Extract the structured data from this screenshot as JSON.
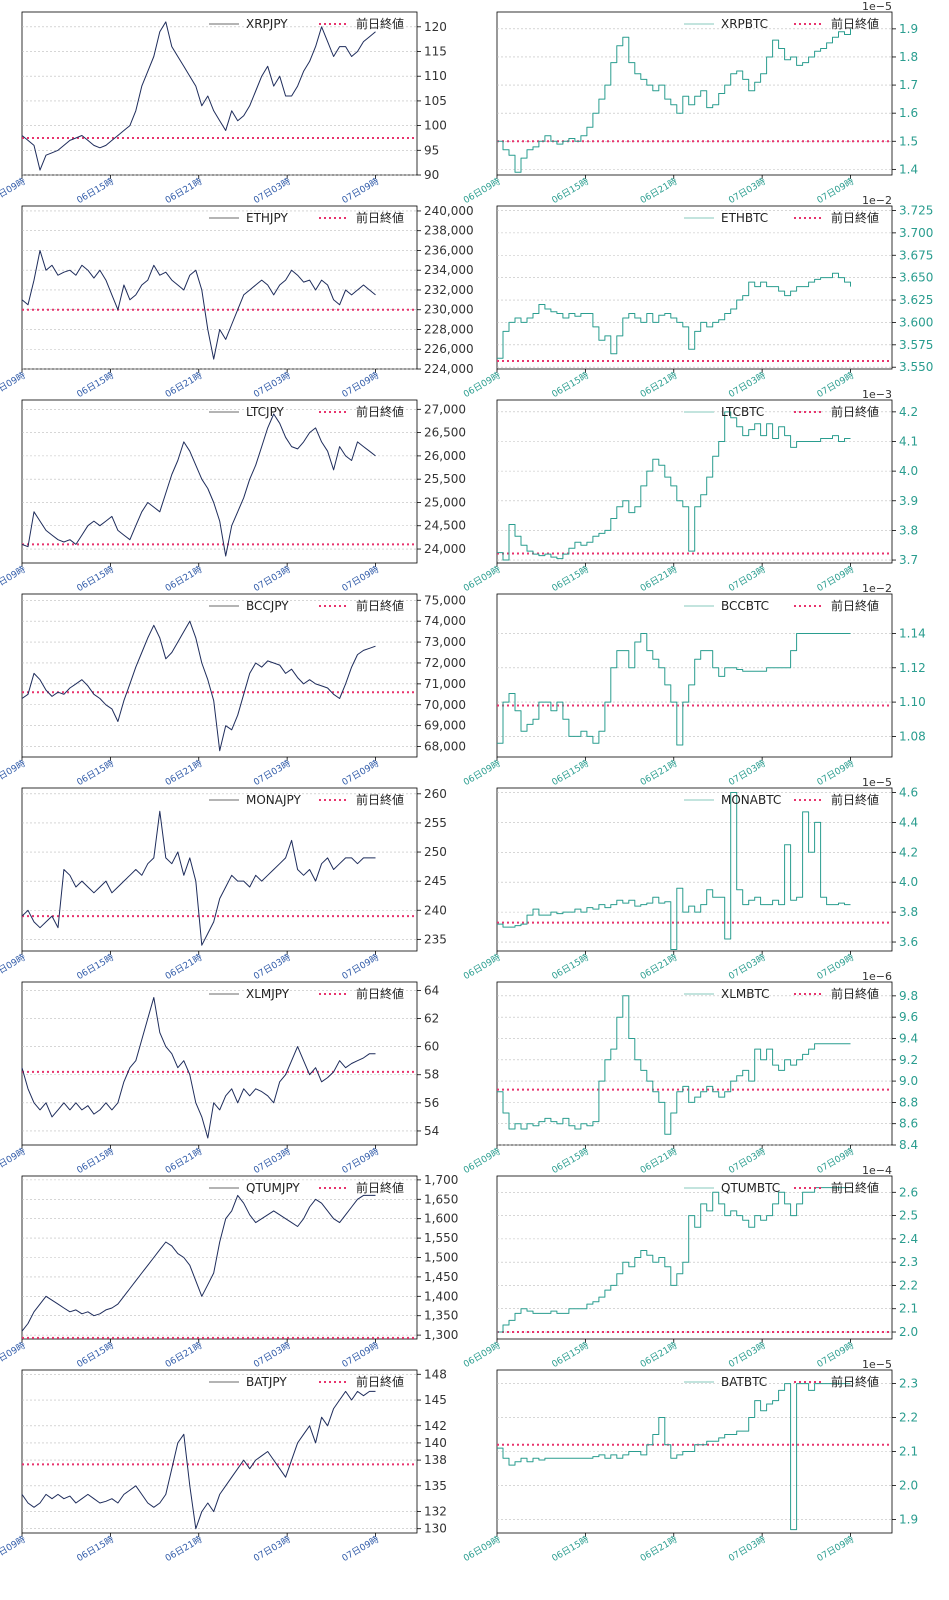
{
  "legend_ref_label": "前日終値",
  "x_tick_labels": [
    "06日09時",
    "06日15時",
    "06日21時",
    "07日03時",
    "07日09時"
  ],
  "colors": {
    "jpy": "#1f2d5c",
    "btc": "#2a9d8f",
    "ref": "#e8336d",
    "btc_tick": "#2a9d8f"
  },
  "chart_data": [
    {
      "type": "line",
      "pair": "XRPJPY",
      "yticks": [
        "90",
        "95",
        "100",
        "105",
        "110",
        "115",
        "120"
      ],
      "ylim": [
        90,
        123
      ],
      "exp": "",
      "ref": 97.5,
      "values": [
        98,
        97,
        96,
        91,
        94,
        94.5,
        95,
        96,
        97,
        97.5,
        98,
        97,
        96,
        95.5,
        96,
        97,
        98,
        99,
        100,
        103,
        108,
        111,
        114,
        119,
        121,
        116,
        114,
        112,
        110,
        108,
        104,
        106,
        103,
        101,
        99,
        103,
        101,
        102,
        104,
        107,
        110,
        112,
        108,
        110,
        106,
        106,
        108,
        111,
        113,
        116,
        120,
        117,
        114,
        116,
        116,
        114,
        115,
        117,
        118,
        119
      ]
    },
    {
      "type": "line",
      "pair": "XRPBTC",
      "yticks": [
        "1.4",
        "1.5",
        "1.6",
        "1.7",
        "1.8",
        "1.9"
      ],
      "ylim": [
        1.38,
        1.96
      ],
      "exp": "1e−5",
      "ref": 1.5,
      "values": [
        1.5,
        1.47,
        1.45,
        1.39,
        1.44,
        1.47,
        1.48,
        1.5,
        1.52,
        1.5,
        1.49,
        1.5,
        1.51,
        1.5,
        1.52,
        1.55,
        1.6,
        1.65,
        1.7,
        1.78,
        1.84,
        1.87,
        1.78,
        1.74,
        1.72,
        1.7,
        1.68,
        1.7,
        1.65,
        1.63,
        1.6,
        1.66,
        1.63,
        1.66,
        1.68,
        1.62,
        1.63,
        1.67,
        1.7,
        1.74,
        1.75,
        1.72,
        1.68,
        1.71,
        1.74,
        1.8,
        1.86,
        1.83,
        1.79,
        1.8,
        1.77,
        1.78,
        1.8,
        1.82,
        1.83,
        1.85,
        1.87,
        1.89,
        1.88,
        1.9
      ]
    },
    {
      "type": "line",
      "pair": "ETHJPY",
      "yticks": [
        "224,000",
        "226,000",
        "228,000",
        "230,000",
        "232,000",
        "234,000",
        "236,000",
        "238,000",
        "240,000"
      ],
      "ylim": [
        224000,
        240500
      ],
      "exp": "",
      "ref": 230000,
      "values": [
        231000,
        230500,
        233000,
        236000,
        234000,
        234500,
        233500,
        233800,
        234000,
        233500,
        234500,
        234000,
        233200,
        234000,
        233000,
        231500,
        230000,
        232500,
        231000,
        231500,
        232500,
        233000,
        234500,
        233500,
        233800,
        233000,
        232500,
        232000,
        233500,
        234000,
        232000,
        228000,
        225000,
        228000,
        227000,
        228500,
        230000,
        231500,
        232000,
        232500,
        233000,
        232500,
        231500,
        232500,
        233000,
        234000,
        233500,
        232800,
        233000,
        232000,
        233000,
        232500,
        231000,
        230500,
        232000,
        231500,
        232000,
        232500,
        232000,
        231500
      ]
    },
    {
      "type": "line",
      "pair": "ETHBTC",
      "yticks": [
        "3.550",
        "3.575",
        "3.600",
        "3.625",
        "3.650",
        "3.675",
        "3.700",
        "3.725"
      ],
      "ylim": [
        3.548,
        3.73
      ],
      "exp": "1e−2",
      "ref": 3.557,
      "values": [
        3.56,
        3.59,
        3.6,
        3.605,
        3.6,
        3.605,
        3.61,
        3.62,
        3.615,
        3.612,
        3.61,
        3.605,
        3.61,
        3.607,
        3.61,
        3.61,
        3.595,
        3.58,
        3.585,
        3.565,
        3.585,
        3.605,
        3.61,
        3.605,
        3.6,
        3.61,
        3.6,
        3.608,
        3.61,
        3.605,
        3.6,
        3.595,
        3.57,
        3.59,
        3.6,
        3.595,
        3.6,
        3.603,
        3.61,
        3.615,
        3.625,
        3.63,
        3.645,
        3.64,
        3.645,
        3.64,
        3.64,
        3.635,
        3.63,
        3.635,
        3.64,
        3.64,
        3.645,
        3.648,
        3.65,
        3.65,
        3.655,
        3.65,
        3.645,
        3.64
      ]
    },
    {
      "type": "line",
      "pair": "LTCJPY",
      "yticks": [
        "24,000",
        "24,500",
        "25,000",
        "25,500",
        "26,000",
        "26,500",
        "27,000"
      ],
      "ylim": [
        23700,
        27200
      ],
      "exp": "",
      "ref": 24100,
      "values": [
        24100,
        24050,
        24800,
        24600,
        24400,
        24300,
        24200,
        24150,
        24200,
        24100,
        24300,
        24500,
        24600,
        24500,
        24600,
        24700,
        24400,
        24300,
        24200,
        24500,
        24800,
        25000,
        24900,
        24800,
        25200,
        25600,
        25900,
        26300,
        26100,
        25800,
        25500,
        25300,
        25000,
        24600,
        23850,
        24500,
        24800,
        25100,
        25500,
        25800,
        26200,
        26600,
        26900,
        26700,
        26400,
        26200,
        26150,
        26300,
        26500,
        26600,
        26300,
        26100,
        25700,
        26200,
        26000,
        25900,
        26300,
        26200,
        26100,
        26000
      ]
    },
    {
      "type": "line",
      "pair": "LTCBTC",
      "yticks": [
        "3.7",
        "3.8",
        "3.9",
        "4.0",
        "4.1",
        "4.2"
      ],
      "ylim": [
        3.69,
        4.24
      ],
      "exp": "1e−3",
      "ref": 3.722,
      "values": [
        3.725,
        3.7,
        3.82,
        3.78,
        3.75,
        3.73,
        3.72,
        3.715,
        3.72,
        3.71,
        3.705,
        3.72,
        3.74,
        3.76,
        3.75,
        3.76,
        3.78,
        3.79,
        3.8,
        3.84,
        3.88,
        3.9,
        3.86,
        3.88,
        3.95,
        4.0,
        4.04,
        4.02,
        3.98,
        3.95,
        3.9,
        3.88,
        3.73,
        3.88,
        3.92,
        3.98,
        4.05,
        4.1,
        4.2,
        4.18,
        4.15,
        4.12,
        4.14,
        4.16,
        4.12,
        4.16,
        4.11,
        4.15,
        4.12,
        4.08,
        4.1,
        4.1,
        4.1,
        4.1,
        4.11,
        4.11,
        4.12,
        4.1,
        4.11,
        4.11
      ]
    },
    {
      "type": "line",
      "pair": "BCCJPY",
      "yticks": [
        "68,000",
        "69,000",
        "70,000",
        "71,000",
        "72,000",
        "73,000",
        "74,000",
        "75,000"
      ],
      "ylim": [
        67500,
        75300
      ],
      "exp": "",
      "ref": 70600,
      "values": [
        70300,
        70500,
        71500,
        71200,
        70700,
        70400,
        70600,
        70500,
        70800,
        71000,
        71200,
        70900,
        70500,
        70300,
        70000,
        69800,
        69200,
        70200,
        71000,
        71800,
        72500,
        73200,
        73800,
        73200,
        72200,
        72500,
        73000,
        73500,
        74000,
        73200,
        72000,
        71200,
        70200,
        67800,
        69000,
        68800,
        69500,
        70500,
        71500,
        72000,
        71800,
        72100,
        72000,
        71900,
        71500,
        71700,
        71300,
        71000,
        71200,
        71000,
        70900,
        70800,
        70500,
        70300,
        71000,
        71800,
        72400,
        72600,
        72700,
        72800
      ]
    },
    {
      "type": "line",
      "pair": "BCCBTC",
      "yticks": [
        "1.08",
        "1.10",
        "1.12",
        "1.14"
      ],
      "ylim": [
        1.068,
        1.163
      ],
      "exp": "1e−2",
      "ref": 1.098,
      "values": [
        1.076,
        1.1,
        1.105,
        1.095,
        1.083,
        1.087,
        1.09,
        1.1,
        1.1,
        1.095,
        1.1,
        1.09,
        1.08,
        1.08,
        1.083,
        1.08,
        1.076,
        1.083,
        1.1,
        1.12,
        1.13,
        1.13,
        1.12,
        1.135,
        1.14,
        1.13,
        1.125,
        1.12,
        1.11,
        1.1,
        1.075,
        1.1,
        1.11,
        1.125,
        1.13,
        1.13,
        1.12,
        1.115,
        1.12,
        1.12,
        1.119,
        1.118,
        1.118,
        1.118,
        1.118,
        1.12,
        1.12,
        1.12,
        1.12,
        1.13,
        1.14,
        1.14,
        1.14,
        1.14,
        1.14,
        1.14,
        1.14,
        1.14,
        1.14,
        1.14
      ]
    },
    {
      "type": "line",
      "pair": "MONAJPY",
      "yticks": [
        "235",
        "240",
        "245",
        "250",
        "255",
        "260"
      ],
      "ylim": [
        233,
        261
      ],
      "exp": "",
      "ref": 239,
      "values": [
        239,
        240,
        238,
        237,
        238,
        239,
        237,
        247,
        246,
        244,
        245,
        244,
        243,
        244,
        245,
        243,
        244,
        245,
        246,
        247,
        246,
        248,
        249,
        257,
        249,
        248,
        250,
        246,
        249,
        245,
        234,
        236,
        238,
        242,
        244,
        246,
        245,
        245,
        244,
        246,
        245,
        246,
        247,
        248,
        249,
        252,
        247,
        246,
        247,
        245,
        248,
        249,
        247,
        248,
        249,
        249,
        248,
        249,
        249,
        249
      ]
    },
    {
      "type": "line",
      "pair": "MONABTC",
      "yticks": [
        "3.6",
        "3.8",
        "4.0",
        "4.2",
        "4.4",
        "4.6"
      ],
      "ylim": [
        3.54,
        4.63
      ],
      "exp": "1e−5",
      "ref": 3.73,
      "values": [
        3.72,
        3.7,
        3.7,
        3.71,
        3.72,
        3.78,
        3.82,
        3.78,
        3.78,
        3.8,
        3.79,
        3.8,
        3.8,
        3.82,
        3.8,
        3.83,
        3.82,
        3.85,
        3.83,
        3.85,
        3.88,
        3.86,
        3.88,
        3.84,
        3.85,
        3.86,
        3.9,
        3.86,
        3.87,
        3.55,
        3.96,
        3.8,
        3.84,
        3.8,
        3.85,
        3.95,
        3.9,
        3.9,
        3.62,
        4.6,
        3.95,
        3.85,
        3.88,
        3.9,
        3.85,
        3.85,
        3.88,
        3.85,
        4.25,
        3.88,
        3.9,
        4.47,
        4.2,
        4.4,
        3.9,
        3.85,
        3.85,
        3.86,
        3.85,
        3.85
      ]
    },
    {
      "type": "line",
      "pair": "XLMJPY",
      "yticks": [
        "54",
        "56",
        "58",
        "60",
        "62",
        "64"
      ],
      "ylim": [
        53,
        64.6
      ],
      "exp": "",
      "ref": 58.2,
      "values": [
        58.5,
        57,
        56,
        55.5,
        56,
        55,
        55.5,
        56,
        55.5,
        56,
        55.5,
        55.8,
        55.2,
        55.5,
        56,
        55.5,
        56,
        57.5,
        58.5,
        59,
        60.5,
        62,
        63.5,
        61,
        60,
        59.5,
        58.5,
        59,
        58,
        56,
        55,
        53.5,
        56,
        55.5,
        56.5,
        57,
        56,
        57,
        56.5,
        57,
        56.8,
        56.5,
        56,
        57.5,
        58,
        59,
        60,
        59,
        58,
        58.5,
        57.5,
        57.8,
        58.2,
        59,
        58.5,
        58.8,
        59,
        59.2,
        59.5,
        59.5
      ]
    },
    {
      "type": "line",
      "pair": "XLMBTC",
      "yticks": [
        "8.4",
        "8.6",
        "8.8",
        "9.0",
        "9.2",
        "9.4",
        "9.6",
        "9.8"
      ],
      "ylim": [
        8.4,
        9.93
      ],
      "exp": "1e−6",
      "ref": 8.92,
      "values": [
        8.9,
        8.7,
        8.55,
        8.6,
        8.55,
        8.6,
        8.58,
        8.62,
        8.65,
        8.62,
        8.6,
        8.65,
        8.58,
        8.55,
        8.6,
        8.58,
        8.62,
        9.0,
        9.2,
        9.3,
        9.6,
        9.8,
        9.4,
        9.2,
        9.1,
        9.0,
        8.9,
        8.8,
        8.5,
        8.7,
        8.9,
        8.95,
        8.8,
        8.85,
        8.9,
        8.95,
        8.9,
        8.85,
        8.9,
        9.0,
        9.05,
        9.1,
        9.0,
        9.3,
        9.2,
        9.3,
        9.15,
        9.1,
        9.2,
        9.15,
        9.2,
        9.25,
        9.3,
        9.35,
        9.35,
        9.35,
        9.35,
        9.35,
        9.35,
        9.35
      ]
    },
    {
      "type": "line",
      "pair": "QTUMJPY",
      "yticks": [
        "1,300",
        "1,350",
        "1,400",
        "1,450",
        "1,500",
        "1,550",
        "1,600",
        "1,650",
        "1,700"
      ],
      "ylim": [
        1290,
        1710
      ],
      "exp": "",
      "ref": 1293,
      "values": [
        1310,
        1330,
        1360,
        1380,
        1400,
        1390,
        1380,
        1370,
        1360,
        1365,
        1355,
        1360,
        1350,
        1355,
        1365,
        1370,
        1380,
        1400,
        1420,
        1440,
        1460,
        1480,
        1500,
        1520,
        1540,
        1530,
        1510,
        1500,
        1480,
        1440,
        1400,
        1430,
        1460,
        1540,
        1600,
        1620,
        1660,
        1640,
        1610,
        1590,
        1600,
        1610,
        1620,
        1610,
        1600,
        1590,
        1580,
        1600,
        1630,
        1650,
        1640,
        1620,
        1600,
        1590,
        1610,
        1630,
        1650,
        1660,
        1660,
        1660
      ]
    },
    {
      "type": "line",
      "pair": "QTUMBTC",
      "yticks": [
        "2.0",
        "2.1",
        "2.2",
        "2.3",
        "2.4",
        "2.5",
        "2.6"
      ],
      "ylim": [
        1.97,
        2.67
      ],
      "exp": "1e−4",
      "ref": 2.0,
      "values": [
        2.0,
        2.03,
        2.05,
        2.08,
        2.1,
        2.09,
        2.08,
        2.08,
        2.08,
        2.09,
        2.08,
        2.08,
        2.1,
        2.1,
        2.1,
        2.12,
        2.13,
        2.15,
        2.18,
        2.2,
        2.25,
        2.3,
        2.28,
        2.32,
        2.35,
        2.33,
        2.3,
        2.32,
        2.28,
        2.2,
        2.25,
        2.3,
        2.5,
        2.45,
        2.55,
        2.52,
        2.6,
        2.55,
        2.5,
        2.52,
        2.5,
        2.48,
        2.45,
        2.5,
        2.48,
        2.5,
        2.55,
        2.6,
        2.55,
        2.5,
        2.55,
        2.6,
        2.6,
        2.62,
        2.62,
        2.62,
        2.62,
        2.62,
        2.62,
        2.62
      ]
    },
    {
      "type": "line",
      "pair": "BATJPY",
      "yticks": [
        "130",
        "132",
        "135",
        "138",
        "140",
        "142",
        "145",
        "148"
      ],
      "ylim": [
        129.5,
        148.5
      ],
      "exp": "",
      "ref": 137.5,
      "values": [
        134,
        133,
        132.5,
        133,
        134,
        133.5,
        134,
        133.5,
        133.8,
        133,
        133.5,
        134,
        133.5,
        133,
        133.2,
        133.5,
        133,
        134,
        134.5,
        135,
        134,
        133,
        132.5,
        133,
        134,
        137,
        140,
        141,
        135,
        130,
        132,
        133,
        132,
        134,
        135,
        136,
        137,
        138,
        137,
        138,
        138.5,
        139,
        138,
        137,
        136,
        138,
        140,
        141,
        142,
        140,
        143,
        142,
        144,
        145,
        146,
        145,
        146,
        145.5,
        146,
        146
      ]
    },
    {
      "type": "line",
      "pair": "BATBTC",
      "yticks": [
        "1.9",
        "2.0",
        "2.1",
        "2.2",
        "2.3"
      ],
      "ylim": [
        1.86,
        2.34
      ],
      "exp": "1e−5",
      "ref": 2.12,
      "values": [
        2.11,
        2.08,
        2.06,
        2.07,
        2.08,
        2.07,
        2.08,
        2.075,
        2.08,
        2.08,
        2.08,
        2.08,
        2.08,
        2.08,
        2.08,
        2.08,
        2.085,
        2.09,
        2.08,
        2.09,
        2.08,
        2.09,
        2.1,
        2.1,
        2.09,
        2.12,
        2.15,
        2.2,
        2.12,
        2.08,
        2.09,
        2.1,
        2.1,
        2.12,
        2.12,
        2.13,
        2.13,
        2.14,
        2.15,
        2.15,
        2.16,
        2.16,
        2.2,
        2.25,
        2.22,
        2.24,
        2.25,
        2.28,
        2.3,
        1.87,
        2.3,
        2.3,
        2.28,
        2.3,
        2.3,
        2.3,
        2.3,
        2.3,
        2.3,
        2.3
      ]
    }
  ]
}
